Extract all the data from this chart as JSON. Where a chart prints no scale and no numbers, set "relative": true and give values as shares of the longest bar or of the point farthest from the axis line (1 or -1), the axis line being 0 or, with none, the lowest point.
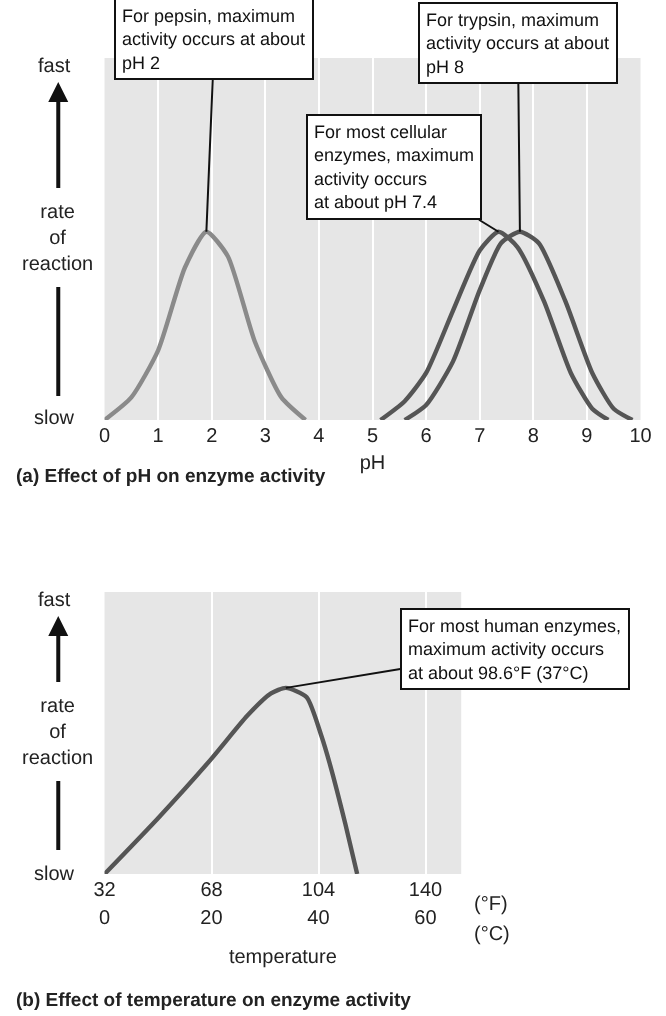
{
  "chart_data": [
    {
      "type": "line",
      "relative": true,
      "title": "(a) Effect of pH on enzyme activity",
      "xlabel": "pH",
      "ylabel": "rate of reaction",
      "xlim": [
        0,
        10
      ],
      "xticks": [
        0,
        1,
        2,
        3,
        4,
        5,
        6,
        7,
        8,
        9,
        10
      ],
      "grid": "x",
      "series": [
        {
          "color": "#8a8a8a",
          "x": [
            0,
            0.5,
            1.0,
            1.5,
            1.9,
            2.3,
            2.8,
            3.3,
            3.75
          ],
          "values": [
            0,
            0.12,
            0.37,
            0.81,
            1,
            0.87,
            0.42,
            0.12,
            0
          ]
        },
        {
          "color": "#555555",
          "x": [
            5.15,
            5.6,
            6.0,
            6.5,
            7.0,
            7.35,
            7.7,
            8.2,
            8.7,
            9.1,
            9.4
          ],
          "values": [
            0,
            0.1,
            0.25,
            0.58,
            0.9,
            1,
            0.92,
            0.63,
            0.25,
            0.06,
            0
          ]
        },
        {
          "color": "#555555",
          "x": [
            5.6,
            6.0,
            6.5,
            7.0,
            7.4,
            7.75,
            8.1,
            8.6,
            9.1,
            9.5,
            9.85
          ],
          "values": [
            0,
            0.08,
            0.31,
            0.69,
            0.94,
            1,
            0.94,
            0.63,
            0.25,
            0.06,
            0
          ]
        }
      ],
      "annotations": [
        {
          "text": "For pepsin, maximum\nactivity occurs at about\npH 2",
          "x": 1.9,
          "y": 1
        },
        {
          "text": "For trypsin, maximum\nactivity occurs at about\npH 8",
          "x": 7.75,
          "y": 1
        },
        {
          "text": "For most cellular\nenzymes, maximum\nactivity occurs\nat about pH 7.4",
          "x": 7.35,
          "y": 1
        },
        "fast",
        "slow"
      ]
    },
    {
      "type": "line",
      "relative": true,
      "title": "(b) Effect of temperature on enzyme activity",
      "xlabel": "temperature",
      "ylabel": "rate of reaction",
      "xlim": [
        32,
        152
      ],
      "xticks": [
        32,
        68,
        104,
        140
      ],
      "x2lim": [
        0,
        66.7
      ],
      "x2ticks": [
        0,
        20,
        40,
        60
      ],
      "grid": "x",
      "series": [
        {
          "color": "#555555",
          "x": [
            32,
            50,
            68,
            80,
            88,
            93,
            100,
            105,
            108,
            113,
            117
          ],
          "values": [
            0,
            0.3,
            0.62,
            0.85,
            0.97,
            1,
            0.95,
            0.74,
            0.58,
            0.27,
            0
          ]
        }
      ],
      "annotations": [
        {
          "text": "For most human enzymes,\nmaximum activity occurs\nat about 98.6°F (37°C)",
          "x": 93,
          "y": 1
        },
        "(°F)",
        "(°C)",
        "fast",
        "slow"
      ]
    }
  ]
}
